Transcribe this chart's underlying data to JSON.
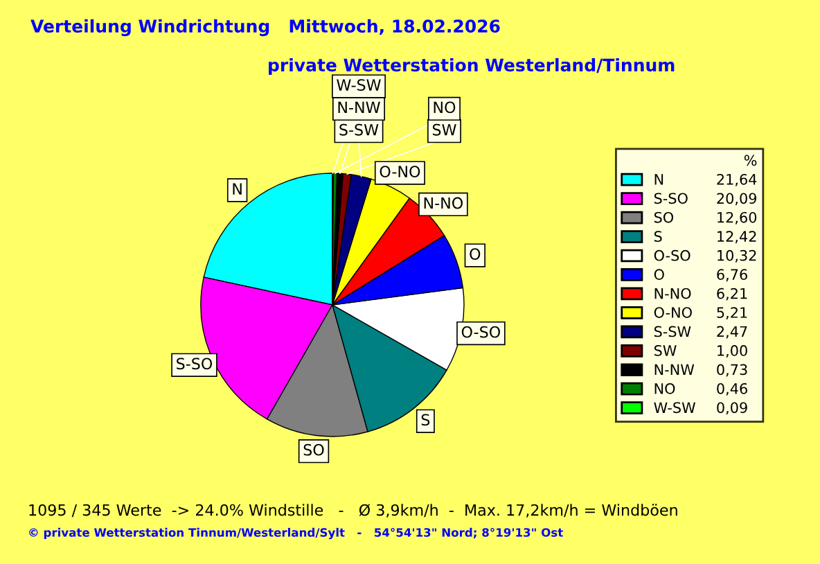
{
  "chart_data": {
    "type": "pie",
    "title": "Verteilung Windrichtung   Mittwoch, 18.02.2026",
    "subtitle": "private Wetterstation Westerland/Tinnum",
    "legend_title": "%",
    "legend": "top right",
    "categories": [
      "N",
      "S-SO",
      "SO",
      "S",
      "O-SO",
      "O",
      "N-NO",
      "O-NO",
      "S-SW",
      "SW",
      "N-NW",
      "NO",
      "W-SW"
    ],
    "values": [
      21.64,
      20.09,
      12.6,
      12.42,
      10.32,
      6.76,
      6.21,
      5.21,
      2.47,
      1.0,
      0.73,
      0.46,
      0.09
    ],
    "value_labels": [
      "21,64",
      "20,09",
      "12,60",
      "12,42",
      "10,32",
      "6,76",
      "6,21",
      "5,21",
      "2,47",
      "1,00",
      "0,73",
      "0,46",
      "0,09"
    ],
    "colors": [
      "#00ffff",
      "#ff00ff",
      "#808080",
      "#008080",
      "#ffffff",
      "#0000ff",
      "#ff0000",
      "#ffff00",
      "#000080",
      "#800000",
      "#000000",
      "#008000",
      "#00ff00"
    ],
    "annotations": [
      "1095 / 345 Werte  -> 24.0% Windstille   -   Ø 3,9km/h  -  Max. 17,2km/h = Windböen",
      "© private Wetterstation Tinnum/Westerland/Sylt   -   54°54'13\" Nord; 8°19'13\" Ost"
    ]
  }
}
